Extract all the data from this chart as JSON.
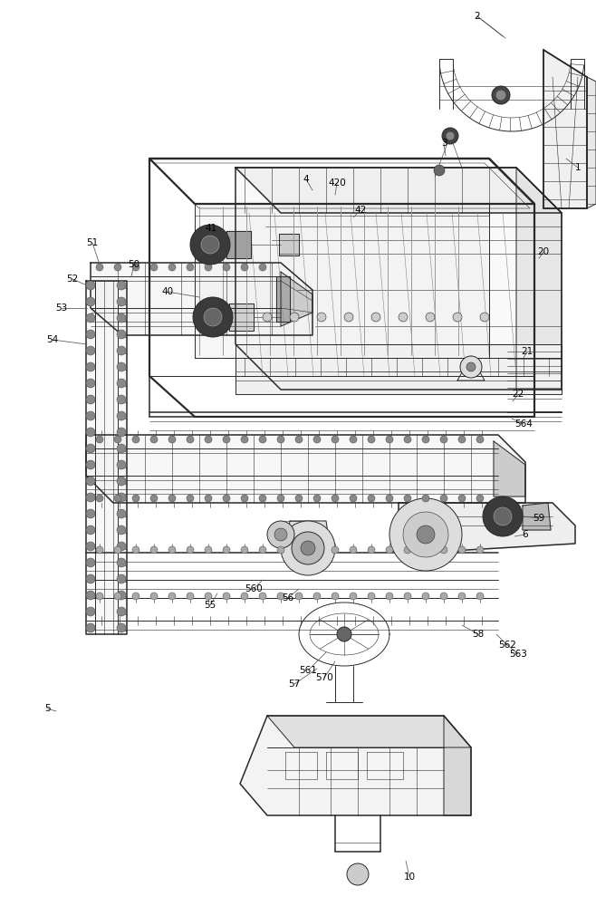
{
  "background_color": "#ffffff",
  "line_color": "#2a2a2a",
  "label_color": "#000000",
  "figsize": [
    6.58,
    10.0
  ],
  "dpi": 100,
  "labels": [
    [
      "2",
      527,
      18
    ],
    [
      "1",
      638,
      185
    ],
    [
      "3",
      490,
      158
    ],
    [
      "4",
      338,
      198
    ],
    [
      "20",
      600,
      278
    ],
    [
      "21",
      582,
      388
    ],
    [
      "22",
      572,
      435
    ],
    [
      "40",
      185,
      322
    ],
    [
      "41",
      233,
      252
    ],
    [
      "42",
      398,
      232
    ],
    [
      "420",
      372,
      202
    ],
    [
      "50",
      148,
      292
    ],
    [
      "51",
      102,
      268
    ],
    [
      "52",
      80,
      308
    ],
    [
      "53",
      68,
      340
    ],
    [
      "54",
      58,
      375
    ],
    [
      "55",
      232,
      668
    ],
    [
      "56",
      318,
      660
    ],
    [
      "560",
      280,
      650
    ],
    [
      "561",
      340,
      740
    ],
    [
      "562",
      560,
      712
    ],
    [
      "563",
      572,
      722
    ],
    [
      "564",
      578,
      468
    ],
    [
      "57",
      325,
      755
    ],
    [
      "570",
      358,
      748
    ],
    [
      "58",
      528,
      700
    ],
    [
      "59",
      595,
      572
    ],
    [
      "6",
      580,
      590
    ],
    [
      "5",
      52,
      782
    ],
    [
      "10",
      452,
      968
    ]
  ]
}
